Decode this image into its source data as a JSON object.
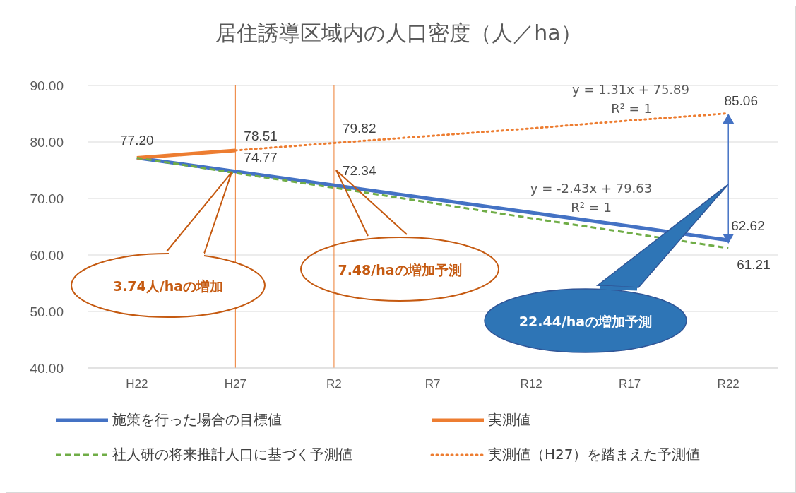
{
  "chart_data": {
    "type": "line",
    "title": "居住誘導区域内の人口密度（人／ha）",
    "categories": [
      "H22",
      "H27",
      "R2",
      "R7",
      "R12",
      "R17",
      "R22"
    ],
    "series": [
      {
        "name": "施策を行った場合の目標値",
        "color": "#4472c4",
        "line_style": "solid",
        "values": [
          77.2,
          74.77,
          72.34,
          69.9,
          67.5,
          65.1,
          62.62
        ],
        "value_labels": [
          "77.20",
          "74.77",
          "72.34",
          null,
          null,
          null,
          "62.62"
        ]
      },
      {
        "name": "実測値",
        "color": "#ed7d31",
        "line_style": "solid",
        "values": [
          77.2,
          78.51,
          null,
          null,
          null,
          null,
          null
        ],
        "value_labels": [
          null,
          "78.51",
          null,
          null,
          null,
          null,
          null
        ]
      },
      {
        "name": "社人研の将来推計人口に基づく予測値",
        "color": "#70ad47",
        "line_style": "dashed",
        "values": [
          77.2,
          74.5,
          71.9,
          69.2,
          66.5,
          63.9,
          61.21
        ],
        "value_labels": [
          null,
          null,
          null,
          null,
          null,
          null,
          "61.21"
        ]
      },
      {
        "name": "実測値（H27）を踏まえた予測値",
        "color": "#ed7d31",
        "line_style": "dotted",
        "values": [
          null,
          78.51,
          79.82,
          81.1,
          82.4,
          83.8,
          85.06
        ],
        "value_labels": [
          null,
          null,
          "79.82",
          null,
          null,
          null,
          "85.06"
        ]
      }
    ],
    "ylim": [
      40,
      90
    ],
    "yticks": [
      {
        "value": 40,
        "label": "40.00"
      },
      {
        "value": 50,
        "label": "50.00"
      },
      {
        "value": 60,
        "label": "60.00"
      },
      {
        "value": 70,
        "label": "70.00"
      },
      {
        "value": 80,
        "label": "80.00"
      },
      {
        "value": 90,
        "label": "90.00"
      }
    ],
    "grid": "y",
    "legend": "bottom",
    "marker": "none",
    "ref_lines": [
      {
        "axis": "x",
        "value": "H27",
        "color": "#ed7d31"
      },
      {
        "axis": "x",
        "value": "R2",
        "color": "#ed7d31"
      }
    ],
    "annotations": [
      "3.74人/haの増加",
      "7.48/haの増加予測",
      "22.44/haの増加予測",
      "y = 1.31x + 75.89",
      "R² = 1",
      "y = -2.43x + 79.63",
      "R² = 1"
    ]
  }
}
